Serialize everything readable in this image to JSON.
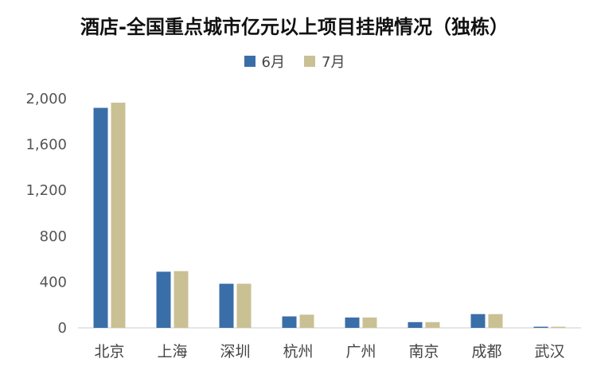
{
  "chart_data": {
    "type": "bar",
    "title": "酒店-全国重点城市亿元以上项目挂牌情况（独栋）",
    "categories": [
      "北京",
      "上海",
      "深圳",
      "杭州",
      "广州",
      "南京",
      "成都",
      "武汉"
    ],
    "series": [
      {
        "name": "6月",
        "color": "#3a6ea8",
        "values": [
          1920,
          490,
          385,
          100,
          90,
          50,
          120,
          10
        ]
      },
      {
        "name": "7月",
        "color": "#c9c194",
        "values": [
          1965,
          495,
          385,
          115,
          90,
          50,
          120,
          10
        ]
      }
    ],
    "y_ticks": [
      "0",
      "400",
      "800",
      "1,200",
      "1,600",
      "2,000"
    ],
    "ylim": [
      0,
      2000
    ],
    "grid": false,
    "legend_position": "top-center"
  }
}
